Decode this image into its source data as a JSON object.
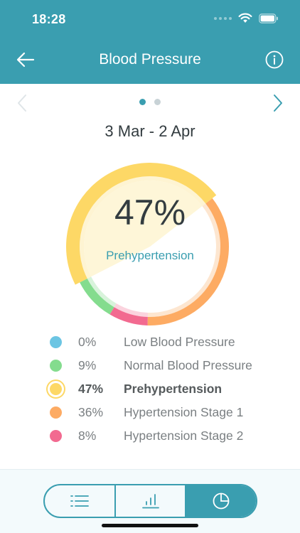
{
  "status_bar": {
    "time": "18:28"
  },
  "header": {
    "title": "Blood Pressure",
    "back_icon": "arrow-left-icon",
    "info_icon": "info-icon"
  },
  "pager": {
    "pages": 2,
    "current": 1
  },
  "date_range": "3 Mar - 2 Apr",
  "summary": {
    "percent": "47%",
    "label": "Prehypertension"
  },
  "chart_data": {
    "type": "pie",
    "categories": [
      "Low Blood Pressure",
      "Normal Blood Pressure",
      "Prehypertension",
      "Hypertension Stage 1",
      "Hypertension Stage 2"
    ],
    "values": [
      0,
      9,
      47,
      36,
      8
    ],
    "highlighted": "Prehypertension"
  },
  "legend": [
    {
      "percent": "0%",
      "label": "Low Blood Pressure",
      "color": "#6cc5e3",
      "active": false
    },
    {
      "percent": "9%",
      "label": "Normal Blood Pressure",
      "color": "#84dc8e",
      "active": false
    },
    {
      "percent": "47%",
      "label": "Prehypertension",
      "color": "#fdd866",
      "active": true
    },
    {
      "percent": "36%",
      "label": "Hypertension Stage 1",
      "color": "#fdab63",
      "active": false
    },
    {
      "percent": "8%",
      "label": "Hypertension Stage 2",
      "color": "#f26a90",
      "active": false
    }
  ],
  "colors": {
    "accent": "#3a9eb0",
    "text": "#333c40"
  },
  "tabs": [
    {
      "icon": "list-icon",
      "active": false
    },
    {
      "icon": "bar-chart-icon",
      "active": false
    },
    {
      "icon": "pie-chart-icon",
      "active": true
    }
  ]
}
